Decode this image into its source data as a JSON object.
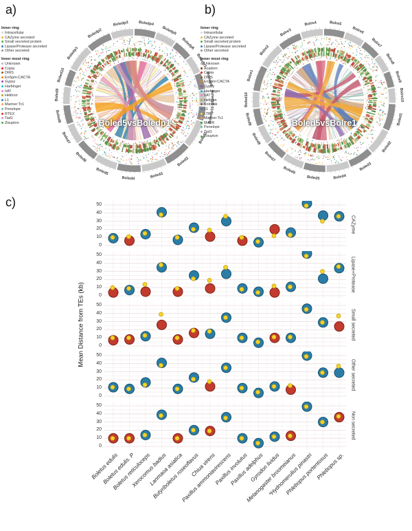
{
  "figure": {
    "panel_a_label": "a)",
    "panel_b_label": "b)",
    "panel_c_label": "c)"
  },
  "chart_data": [
    {
      "id": "a",
      "type": "chord",
      "title": "Boled5vsBoledp1",
      "seed": 7,
      "legend": {
        "inner_ring_title": "Inner ring",
        "inner_ring": [
          {
            "label": "Intracellular",
            "color": "#d9d9d9"
          },
          {
            "label": "CAZyme secreted",
            "color": "#f0b429"
          },
          {
            "label": "Small secreted protein",
            "color": "#4daf4a"
          },
          {
            "label": "Lipase/Protease secreted",
            "color": "#377eb8"
          },
          {
            "label": "Other secreted",
            "color": "#8f8f8f"
          }
        ],
        "innermost_ring_title": "Inner most ring",
        "innermost_ring": [
          {
            "label": "Unknown",
            "color": "#b5b5b5"
          },
          {
            "label": "Copia",
            "color": "#e41a1c"
          },
          {
            "label": "DIRS",
            "color": "#8b5a2b"
          },
          {
            "label": "EnSpm:CACTA",
            "color": "#ff7f00"
          },
          {
            "label": "Gypsy",
            "color": "#984ea3"
          },
          {
            "label": "Harbinger",
            "color": "#00bcd4"
          },
          {
            "label": "hAT",
            "color": "#f781bf"
          },
          {
            "label": "Helitron",
            "color": "#a6a830"
          },
          {
            "label": "L1",
            "color": "#377eb8"
          },
          {
            "label": "Mariner:Tc1",
            "color": "#ff9e4a"
          },
          {
            "label": "Penelope",
            "color": "#66c2a5"
          },
          {
            "label": "RTEX",
            "color": "#d73027"
          },
          {
            "label": "Tad1",
            "color": "#c49ac4"
          },
          {
            "label": "Zisupton",
            "color": "#4daf4a"
          }
        ]
      },
      "segments": [
        {
          "name": "Boledp4",
          "size": 8.5
        },
        {
          "name": "Boledp5",
          "size": 8
        },
        {
          "name": "Boledp6",
          "size": 7.5
        },
        {
          "name": "Boledp7",
          "size": 7
        },
        {
          "name": "Boledp8",
          "size": 6.5
        },
        {
          "name": "Boledp9",
          "size": 6
        },
        {
          "name": "Boledp10",
          "size": 5.5
        },
        {
          "name": "Boled1",
          "size": 11
        },
        {
          "name": "Boled2",
          "size": 10.5
        },
        {
          "name": "Boled3",
          "size": 10
        },
        {
          "name": "Boled4",
          "size": 9.5
        },
        {
          "name": "Boled5",
          "size": 9
        },
        {
          "name": "Boled6",
          "size": 8.5
        },
        {
          "name": "Boled7",
          "size": 8
        },
        {
          "name": "Boled8",
          "size": 7.5
        },
        {
          "name": "Boled9",
          "size": 7
        },
        {
          "name": "Boled10",
          "size": 6.5
        },
        {
          "name": "Boledp1",
          "size": 10.5
        },
        {
          "name": "Boledp2",
          "size": 10
        },
        {
          "name": "Boledp3",
          "size": 9
        }
      ],
      "chord_colors": [
        "#f5a21b",
        "#f5a21b",
        "#f5a21b",
        "#f9c908",
        "#f9c908",
        "#f3e23a",
        "#2e7fa8",
        "#2e7fa8",
        "#e0699f",
        "#e0699f",
        "#c76b94",
        "#9b6bb3",
        "#e89cb7",
        "#c9a0b8",
        "#e8c49e",
        "#d98880"
      ]
    },
    {
      "id": "b",
      "type": "chord",
      "title": "Boled5vsBolre1",
      "seed": 13,
      "legend": {
        "inner_ring_title": "Inner ring",
        "inner_ring": [
          {
            "label": "Intracellular",
            "color": "#d9d9d9"
          },
          {
            "label": "CAZyme secreted",
            "color": "#f0b429"
          },
          {
            "label": "Small secreted protein",
            "color": "#4daf4a"
          },
          {
            "label": "Lipase/Protease secreted",
            "color": "#377eb8"
          },
          {
            "label": "Other secreted",
            "color": "#8f8f8f"
          }
        ],
        "innermost_ring_title": "Inner most ring",
        "innermost_ring": [
          {
            "label": "Unknown",
            "color": "#b5b5b5"
          },
          {
            "label": "Academ",
            "color": "#7b3f00"
          },
          {
            "label": "Copia",
            "color": "#e41a1c"
          },
          {
            "label": "DIRS",
            "color": "#8b5a2b"
          },
          {
            "label": "EnSpm:CACTA",
            "color": "#ff7f00"
          },
          {
            "label": "Gypsy",
            "color": "#984ea3"
          },
          {
            "label": "Harbinger",
            "color": "#00bcd4"
          },
          {
            "label": "hAT",
            "color": "#f781bf"
          },
          {
            "label": "Helitron",
            "color": "#a6a830"
          },
          {
            "label": "Kolobok",
            "color": "#8c564b"
          },
          {
            "label": "L1",
            "color": "#377eb8"
          },
          {
            "label": "LTR",
            "color": "#f9d62e"
          },
          {
            "label": "Mariner:Tc1",
            "color": "#ff9e4a"
          },
          {
            "label": "MuDR",
            "color": "#2ca02c"
          },
          {
            "label": "Penelope",
            "color": "#66c2a5"
          },
          {
            "label": "Tad1",
            "color": "#c49ac4"
          },
          {
            "label": "Zisupton",
            "color": "#4daf4a"
          }
        ]
      },
      "segments": [
        {
          "name": "Bolre5",
          "size": 8.5
        },
        {
          "name": "Bolre6",
          "size": 8
        },
        {
          "name": "Bolre7",
          "size": 7.5
        },
        {
          "name": "Bolre8",
          "size": 7
        },
        {
          "name": "Bolre9",
          "size": 6.5
        },
        {
          "name": "Bolre10",
          "size": 6
        },
        {
          "name": "Boled1",
          "size": 11
        },
        {
          "name": "Boled2",
          "size": 10.5
        },
        {
          "name": "Boled3",
          "size": 10
        },
        {
          "name": "Boled4",
          "size": 9.5
        },
        {
          "name": "Boled5",
          "size": 9
        },
        {
          "name": "Boled6",
          "size": 8.5
        },
        {
          "name": "Boled7",
          "size": 8
        },
        {
          "name": "Boled8",
          "size": 7.5
        },
        {
          "name": "Boled9",
          "size": 7
        },
        {
          "name": "Boled10",
          "size": 6.5
        },
        {
          "name": "Bolre1",
          "size": 10.5
        },
        {
          "name": "Bolre2",
          "size": 10
        },
        {
          "name": "Bolre3",
          "size": 9.5
        },
        {
          "name": "Bolre4",
          "size": 9
        }
      ],
      "chord_colors": [
        "#1f8f78",
        "#1f8f78",
        "#2aa198",
        "#f2a93b",
        "#f2a93b",
        "#edc95c",
        "#d66a82",
        "#d66a82",
        "#c2566b",
        "#8a6db1",
        "#5b7fc0",
        "#caa27e",
        "#e3a7b8",
        "#9c86c0"
      ]
    },
    {
      "id": "c",
      "type": "scatter",
      "ylabel": "Mean Distance from TEs (kb)",
      "yticks": [
        0,
        10,
        20,
        30,
        40,
        50
      ],
      "ylim": [
        0,
        55
      ],
      "grid": true,
      "facet_position": "right",
      "colors": {
        "teal": "#2b7da6",
        "red": "#c23b2e",
        "yellow": "#f6d32b"
      },
      "species": [
        "Boletus edulis",
        "Boletus edulis. P",
        "Boletus reticuloceps",
        "Xerocomus badius",
        "Lanmaoa asiatica",
        "Butyriboletus roseoflavus",
        "Chiua virens",
        "Paxillus ammoniavirescens",
        "Paxillus involutus",
        "Paxillus adelphus",
        "Gyrodon lividus",
        "Melanogaster broomeianus",
        "*Hydnomerulius pinastri",
        "Phlebopus portentosus",
        "Phlebopus sp."
      ],
      "facets": [
        {
          "label": "CAZyme",
          "points": [
            {
              "v": 9,
              "c": "teal",
              "y": 10
            },
            {
              "v": 6,
              "c": "red",
              "y": 11
            },
            {
              "v": 14,
              "c": "teal",
              "y": 15
            },
            {
              "v": 41,
              "c": "teal",
              "y": 38
            },
            {
              "v": 7,
              "c": "teal",
              "y": 10
            },
            {
              "v": 22,
              "c": "teal",
              "y": 20
            },
            {
              "v": 11,
              "c": "red",
              "y": 19
            },
            {
              "v": 30,
              "c": "teal",
              "y": 36
            },
            {
              "v": 6,
              "c": "red",
              "y": 10
            },
            {
              "v": 4,
              "c": "teal",
              "y": 5
            },
            {
              "v": 20,
              "c": "red",
              "y": 12
            },
            {
              "v": 16,
              "c": "teal",
              "y": 13
            },
            {
              "v": 52,
              "c": "teal",
              "y": 49
            },
            {
              "v": 37,
              "c": "teal",
              "y": 30
            },
            {
              "v": 36,
              "c": "teal",
              "y": 36
            }
          ]
        },
        {
          "label": "Lipase+Protease",
          "points": [
            {
              "v": 4,
              "c": "red",
              "y": 10
            },
            {
              "v": 7,
              "c": "teal",
              "y": 9
            },
            {
              "v": 5,
              "c": "red",
              "y": 14
            },
            {
              "v": 35,
              "c": "teal",
              "y": 38
            },
            {
              "v": 5,
              "c": "red",
              "y": 9
            },
            {
              "v": 25,
              "c": "teal",
              "y": 21
            },
            {
              "v": 9,
              "c": "red",
              "y": 19
            },
            {
              "v": 27,
              "c": "teal",
              "y": 35
            },
            {
              "v": 9,
              "c": "teal",
              "y": 8
            },
            {
              "v": 5,
              "c": "teal",
              "y": 4
            },
            {
              "v": 4,
              "c": "red",
              "y": 12
            },
            {
              "v": 11,
              "c": "teal",
              "y": 11
            },
            {
              "v": 52,
              "c": "teal",
              "y": 49
            },
            {
              "v": 21,
              "c": "teal",
              "y": 30
            },
            {
              "v": 34,
              "c": "teal",
              "y": 36
            }
          ]
        },
        {
          "label": "Small secreted",
          "points": [
            {
              "v": 7,
              "c": "red",
              "y": 10
            },
            {
              "v": 8,
              "c": "red",
              "y": 10
            },
            {
              "v": 12,
              "c": "teal",
              "y": 13
            },
            {
              "v": 26,
              "c": "red",
              "y": 39
            },
            {
              "v": 8,
              "c": "red",
              "y": 10
            },
            {
              "v": 16,
              "c": "red",
              "y": 19
            },
            {
              "v": 15,
              "c": "teal",
              "y": 18
            },
            {
              "v": 35,
              "c": "teal",
              "y": 35
            },
            {
              "v": 10,
              "c": "teal",
              "y": 10
            },
            {
              "v": 4,
              "c": "teal",
              "y": 5
            },
            {
              "v": 10,
              "c": "red",
              "y": 11
            },
            {
              "v": 10,
              "c": "teal",
              "y": 11
            },
            {
              "v": 46,
              "c": "teal",
              "y": 45
            },
            {
              "v": 29,
              "c": "teal",
              "y": 29
            },
            {
              "v": 24,
              "c": "red",
              "y": 37
            }
          ]
        },
        {
          "label": "Other secreted",
          "points": [
            {
              "v": 11,
              "c": "teal",
              "y": 11
            },
            {
              "v": 9,
              "c": "teal",
              "y": 9
            },
            {
              "v": 17,
              "c": "teal",
              "y": 14
            },
            {
              "v": 41,
              "c": "teal",
              "y": 38
            },
            {
              "v": 9,
              "c": "teal",
              "y": 9
            },
            {
              "v": 23,
              "c": "teal",
              "y": 21
            },
            {
              "v": 12,
              "c": "red",
              "y": 18
            },
            {
              "v": 35,
              "c": "teal",
              "y": 35
            },
            {
              "v": 10,
              "c": "teal",
              "y": 10
            },
            {
              "v": 4,
              "c": "teal",
              "y": 5
            },
            {
              "v": 12,
              "c": "teal",
              "y": 12
            },
            {
              "v": 8,
              "c": "red",
              "y": 13
            },
            {
              "v": 50,
              "c": "teal",
              "y": 49
            },
            {
              "v": 29,
              "c": "teal",
              "y": 29
            },
            {
              "v": 29,
              "c": "teal",
              "y": 37
            }
          ]
        },
        {
          "label": "Non secreted",
          "points": [
            {
              "v": 10,
              "c": "red",
              "y": 10
            },
            {
              "v": 10,
              "c": "red",
              "y": 10
            },
            {
              "v": 14,
              "c": "teal",
              "y": 14
            },
            {
              "v": 39,
              "c": "teal",
              "y": 38
            },
            {
              "v": 10,
              "c": "red",
              "y": 10
            },
            {
              "v": 20,
              "c": "teal",
              "y": 20
            },
            {
              "v": 19,
              "c": "red",
              "y": 19
            },
            {
              "v": 36,
              "c": "teal",
              "y": 35
            },
            {
              "v": 10,
              "c": "teal",
              "y": 10
            },
            {
              "v": 4,
              "c": "teal",
              "y": 4
            },
            {
              "v": 12,
              "c": "teal",
              "y": 12
            },
            {
              "v": 13,
              "c": "red",
              "y": 13
            },
            {
              "v": 49,
              "c": "teal",
              "y": 49
            },
            {
              "v": 30,
              "c": "teal",
              "y": 30
            },
            {
              "v": 36,
              "c": "red",
              "y": 37
            }
          ]
        }
      ]
    }
  ]
}
